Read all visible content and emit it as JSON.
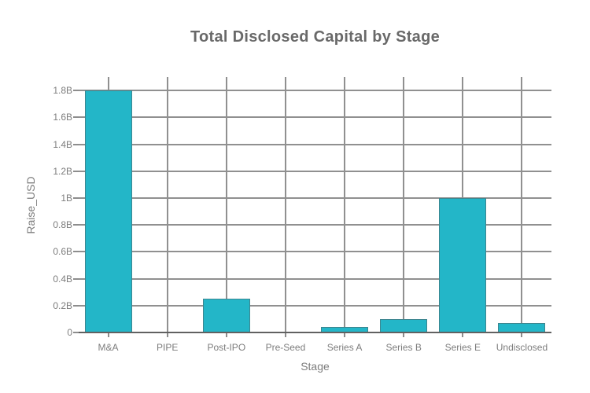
{
  "chart_data": {
    "type": "bar",
    "title": "Total Disclosed Capital by Stage",
    "xlabel": "Stage",
    "ylabel": "Raise_USD",
    "categories": [
      "M&A",
      "PIPE",
      "Post-IPO",
      "Pre-Seed",
      "Series A",
      "Series B",
      "Series E",
      "Undisclosed"
    ],
    "values_billions": [
      1.8,
      0.005,
      0.25,
      0.002,
      0.04,
      0.1,
      1.0,
      0.07
    ],
    "ytick_values": [
      0,
      0.2,
      0.4,
      0.6,
      0.8,
      1.0,
      1.2,
      1.4,
      1.6,
      1.8
    ],
    "ytick_labels": [
      "0",
      "0.2B",
      "0.4B",
      "0.6B",
      "0.8B",
      "1B",
      "1.2B",
      "1.4B",
      "1.6B",
      "1.8B"
    ],
    "ylim": [
      0,
      1.9
    ],
    "grid": true,
    "legend": "none",
    "colors": {
      "bar": "#23b6c8",
      "grid": "#909090",
      "axis_line": "#616161",
      "tick_text": "#7d7d7d",
      "title_text": "#696969"
    }
  }
}
